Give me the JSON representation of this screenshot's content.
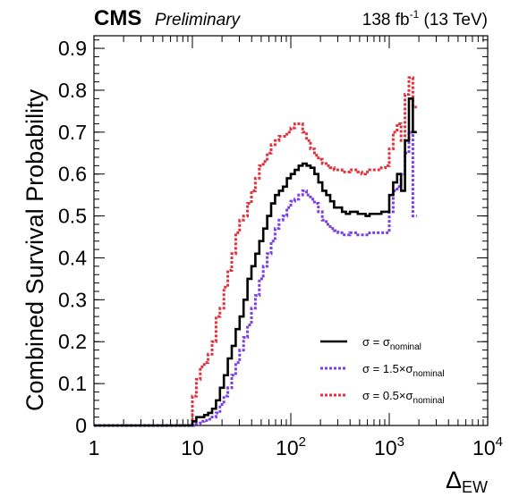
{
  "header": {
    "experiment": "CMS",
    "status": "Preliminary",
    "lumi_value": "138 fb",
    "lumi_exp": "-1",
    "energy": "(13 TeV)"
  },
  "chart_data": {
    "type": "line",
    "drawstyle": "steps",
    "ylabel": "Combined Survival Probability",
    "xlabel": {
      "main": "Δ",
      "sub": "EW"
    },
    "xscale": "log",
    "xlim": [
      1,
      10000
    ],
    "ylim": [
      0,
      0.93
    ],
    "x_ticks": [
      {
        "value": 1,
        "label": "1",
        "exp": ""
      },
      {
        "value": 10,
        "label": "10",
        "exp": ""
      },
      {
        "value": 100,
        "label": "10",
        "exp": "2"
      },
      {
        "value": 1000,
        "label": "10",
        "exp": "3"
      },
      {
        "value": 10000,
        "label": "10",
        "exp": "4"
      }
    ],
    "y_ticks": [
      {
        "value": 0,
        "label": "0"
      },
      {
        "value": 0.1,
        "label": "0.1"
      },
      {
        "value": 0.2,
        "label": "0.2"
      },
      {
        "value": 0.3,
        "label": "0.3"
      },
      {
        "value": 0.4,
        "label": "0.4"
      },
      {
        "value": 0.5,
        "label": "0.5"
      },
      {
        "value": 0.6,
        "label": "0.6"
      },
      {
        "value": 0.7,
        "label": "0.7"
      },
      {
        "value": 0.8,
        "label": "0.8"
      },
      {
        "value": 0.9,
        "label": "0.9"
      }
    ],
    "bins_per_decade": 25,
    "legend_position": "bottom-right",
    "series": [
      {
        "label": {
          "lhs": "σ = σ",
          "sub": "nominal"
        },
        "color": "#000000",
        "dash": "solid",
        "values": [
          0,
          0,
          0,
          0,
          0,
          0,
          0,
          0,
          0,
          0,
          0,
          0,
          0,
          0,
          0,
          0,
          0,
          0,
          0,
          0,
          0,
          0,
          0,
          0,
          0,
          0.01,
          0.02,
          0.02,
          0.025,
          0.03,
          0.04,
          0.06,
          0.09,
          0.12,
          0.16,
          0.19,
          0.23,
          0.26,
          0.3,
          0.35,
          0.38,
          0.41,
          0.44,
          0.47,
          0.5,
          0.53,
          0.55,
          0.56,
          0.57,
          0.59,
          0.6,
          0.61,
          0.62,
          0.625,
          0.62,
          0.615,
          0.6,
          0.58,
          0.56,
          0.55,
          0.535,
          0.52,
          0.52,
          0.51,
          0.505,
          0.51,
          0.51,
          0.505,
          0.505,
          0.5,
          0.505,
          0.505,
          0.505,
          0.51,
          0.51,
          0.55,
          0.58,
          0.6,
          0.56,
          0.68,
          0.78,
          0.7
        ]
      },
      {
        "label": {
          "lhs": "σ = 1.5×σ",
          "sub": "nominal"
        },
        "color": "#7b3fe4",
        "dash": "dotted",
        "values": [
          0,
          0,
          0,
          0,
          0,
          0,
          0,
          0,
          0,
          0,
          0,
          0,
          0,
          0,
          0,
          0,
          0,
          0,
          0,
          0,
          0,
          0,
          0,
          0,
          0,
          0,
          0.005,
          0.01,
          0.012,
          0.015,
          0.02,
          0.03,
          0.05,
          0.07,
          0.09,
          0.12,
          0.15,
          0.18,
          0.21,
          0.24,
          0.28,
          0.31,
          0.35,
          0.38,
          0.41,
          0.44,
          0.47,
          0.49,
          0.5,
          0.52,
          0.535,
          0.54,
          0.55,
          0.56,
          0.55,
          0.54,
          0.53,
          0.51,
          0.49,
          0.48,
          0.47,
          0.465,
          0.46,
          0.455,
          0.455,
          0.46,
          0.46,
          0.455,
          0.455,
          0.455,
          0.46,
          0.46,
          0.46,
          0.46,
          0.46,
          0.51,
          0.56,
          0.57,
          0.6,
          0.65,
          0.7,
          0.5
        ]
      },
      {
        "label": {
          "lhs": "σ = 0.5×σ",
          "sub": "nominal"
        },
        "color": "#e0323c",
        "dash": "dotted",
        "values": [
          0,
          0,
          0,
          0,
          0,
          0,
          0,
          0,
          0,
          0,
          0,
          0,
          0,
          0,
          0,
          0,
          0,
          0,
          0,
          0,
          0,
          0,
          0,
          0,
          0,
          0.07,
          0.11,
          0.14,
          0.15,
          0.17,
          0.2,
          0.26,
          0.28,
          0.33,
          0.37,
          0.41,
          0.46,
          0.49,
          0.5,
          0.53,
          0.56,
          0.59,
          0.62,
          0.63,
          0.65,
          0.67,
          0.68,
          0.69,
          0.69,
          0.7,
          0.71,
          0.72,
          0.72,
          0.7,
          0.68,
          0.66,
          0.645,
          0.635,
          0.625,
          0.62,
          0.615,
          0.61,
          0.61,
          0.605,
          0.605,
          0.61,
          0.61,
          0.605,
          0.6,
          0.605,
          0.61,
          0.61,
          0.61,
          0.615,
          0.62,
          0.66,
          0.7,
          0.72,
          0.68,
          0.79,
          0.83,
          0.76
        ]
      }
    ]
  }
}
